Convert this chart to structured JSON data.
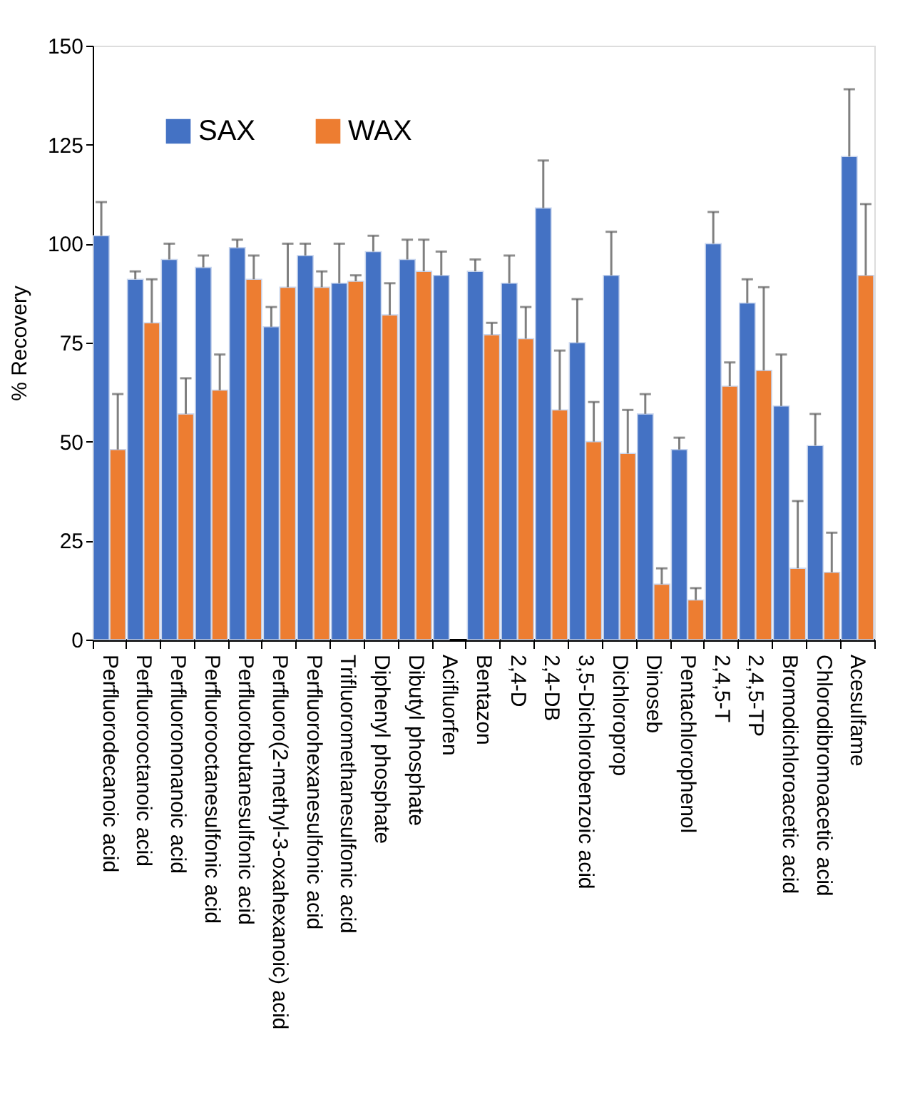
{
  "chart_data": {
    "type": "bar",
    "ylabel": "% Recovery",
    "categories": [
      "Perfluorodecanoic acid",
      "Perfluorooctanoic acid",
      "Perfluorononanoic acid",
      "Perfluorooctanesulfonic acid",
      "Perfluorobutanesulfonic acid",
      "Perfluoro(2-methyl-3-oxahexanoic) acid",
      "Perfluorohexanesulfonic acid",
      "Trifluoromethanesulfonic acid",
      "Diphenyl phosphate",
      "Dibutyl phosphate",
      "Acifluorfen",
      "Bentazon",
      "2,4-D",
      "2,4-DB",
      "3,5-Dichlorobenzoic acid",
      "Dichloroprop",
      "Dinoseb",
      "Pentachlorophenol",
      "2,4,5-T",
      "2,4,5-TP",
      "Bromodichloroacetic acid",
      "Chlorodibromoacetic acid",
      "Acesulfame"
    ],
    "series": [
      {
        "name": "SAX",
        "color": "#4472c4",
        "values": [
          102,
          91,
          96,
          94,
          99,
          79,
          97,
          90,
          98,
          96,
          92,
          93,
          90,
          109,
          75,
          92,
          57,
          48,
          100,
          85,
          59,
          49,
          122
        ],
        "errors": [
          [
            102,
            110.5
          ],
          [
            91,
            93
          ],
          [
            96,
            100
          ],
          [
            94,
            97
          ],
          [
            99,
            101
          ],
          [
            79,
            84
          ],
          [
            97,
            100
          ],
          [
            90,
            100
          ],
          [
            98,
            102
          ],
          [
            96,
            101
          ],
          [
            92,
            98
          ],
          [
            93,
            96
          ],
          [
            90,
            97
          ],
          [
            109,
            121
          ],
          [
            75,
            86
          ],
          [
            92,
            103
          ],
          [
            57,
            62
          ],
          [
            48,
            51
          ],
          [
            100,
            108
          ],
          [
            85,
            91
          ],
          [
            59,
            72
          ],
          [
            49,
            57
          ],
          [
            122,
            139
          ]
        ]
      },
      {
        "name": "WAX",
        "color": "#ed7d31",
        "values": [
          48,
          80,
          57,
          63,
          91,
          89,
          89,
          90.5,
          82,
          93,
          null,
          77,
          76,
          58,
          50,
          47,
          14,
          10,
          64,
          68,
          18,
          17,
          92
        ],
        "errors": [
          [
            48,
            62
          ],
          [
            80,
            91
          ],
          [
            57,
            66
          ],
          [
            63,
            72
          ],
          [
            91,
            97
          ],
          [
            89,
            100
          ],
          [
            89,
            93
          ],
          [
            90.5,
            92
          ],
          [
            82,
            90
          ],
          [
            93,
            101
          ],
          null,
          [
            77,
            80
          ],
          [
            76,
            84
          ],
          [
            58,
            73
          ],
          [
            50,
            60
          ],
          [
            47,
            58
          ],
          [
            14,
            18
          ],
          [
            10,
            13
          ],
          [
            64,
            70
          ],
          [
            68,
            89
          ],
          [
            18,
            35
          ],
          [
            17,
            27
          ],
          [
            92,
            110
          ]
        ]
      }
    ],
    "ylim": [
      0,
      150
    ],
    "yticks": [
      0,
      25,
      50,
      75,
      100,
      125,
      150
    ],
    "grid": false,
    "legend": "top left"
  }
}
